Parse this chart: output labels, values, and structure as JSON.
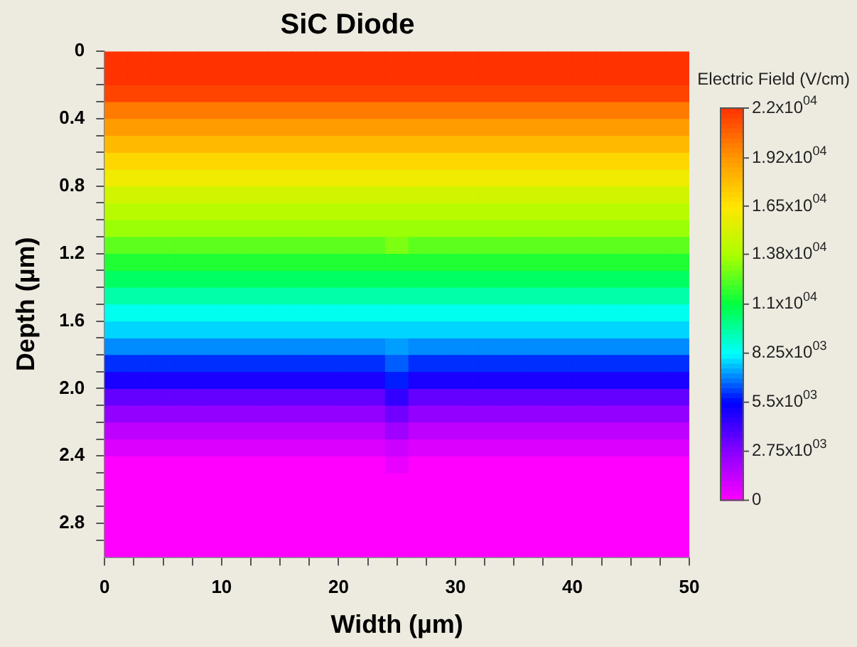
{
  "chart_data": {
    "type": "heatmap",
    "title": "SiC Diode",
    "xlabel": "Width (µm)",
    "ylabel": "Depth (µm)",
    "clabel": "Electric Field (V/cm)",
    "xlim": [
      0,
      50
    ],
    "xticks": [
      0,
      {
        "value": 2.5,
        "label": null
      },
      {
        "value": 5,
        "label": null
      },
      {
        "value": 7.5,
        "label": null
      },
      10,
      {
        "value": 12.5,
        "label": null
      },
      {
        "value": 15,
        "label": null
      },
      {
        "value": 17.5,
        "label": null
      },
      20,
      {
        "value": 22.5,
        "label": null
      },
      {
        "value": 25,
        "label": null
      },
      {
        "value": 27.5,
        "label": null
      },
      30,
      {
        "value": 32.5,
        "label": null
      },
      {
        "value": 35,
        "label": null
      },
      {
        "value": 37.5,
        "label": null
      },
      40,
      {
        "value": 42.5,
        "label": null
      },
      {
        "value": 45,
        "label": null
      },
      {
        "value": 47.5,
        "label": null
      },
      50
    ],
    "ylim": [
      3.0,
      0
    ],
    "yticks": [
      0,
      {
        "value": 0.1,
        "label": null
      },
      {
        "value": 0.2,
        "label": null
      },
      {
        "value": 0.3,
        "label": null
      },
      0.4,
      {
        "value": 0.5,
        "label": null
      },
      {
        "value": 0.6,
        "label": null
      },
      {
        "value": 0.7,
        "label": null
      },
      0.8,
      {
        "value": 0.9,
        "label": null
      },
      {
        "value": 1.0,
        "label": null
      },
      {
        "value": 1.1,
        "label": null
      },
      1.2,
      {
        "value": 1.3,
        "label": null
      },
      {
        "value": 1.4,
        "label": null
      },
      {
        "value": 1.5,
        "label": null
      },
      1.6,
      {
        "value": 1.7,
        "label": null
      },
      {
        "value": 1.8,
        "label": null
      },
      {
        "value": 1.9,
        "label": null
      },
      {
        "value": 2,
        "label": "2.0"
      },
      {
        "value": 2.1,
        "label": null
      },
      {
        "value": 2.2,
        "label": null
      },
      {
        "value": 2.3,
        "label": null
      },
      2.4,
      {
        "value": 2.5,
        "label": null
      },
      {
        "value": 2.6,
        "label": null
      },
      {
        "value": 2.7,
        "label": null
      },
      2.8,
      {
        "value": 2.9,
        "label": null
      }
    ],
    "clim": [
      0,
      22000
    ],
    "cticks": [
      {
        "value": 22000,
        "label": "2.2x10$^{04}$"
      },
      {
        "value": 19200,
        "label": "1.92x10$^{04}$"
      },
      {
        "value": 16500,
        "label": "1.65x10$^{04}$"
      },
      {
        "value": 13800,
        "label": "1.38x10$^{04}$"
      },
      {
        "value": 11000,
        "label": "1.1x10$^{04}$"
      },
      {
        "value": 8250,
        "label": "8.25x10$^{03}$"
      },
      {
        "value": 5500,
        "label": "5.5x10$^{03}$"
      },
      {
        "value": 2750,
        "label": "2.75x10$^{03}$"
      },
      0
    ],
    "cells": [
      [
        22000,
        22000,
        22000,
        22000,
        22000,
        22000,
        22000,
        22000,
        22000,
        22000,
        22000,
        22000,
        22000,
        22000,
        22000,
        22000,
        22000,
        22000,
        22000,
        22000,
        22000,
        22000,
        22000,
        22000,
        22000
      ],
      [
        22000,
        22000,
        22000,
        22000,
        22000,
        22000,
        22000,
        22000,
        22000,
        22000,
        22000,
        22000,
        22000,
        22000,
        22000,
        22000,
        22000,
        22000,
        22000,
        22000,
        22000,
        22000,
        22000,
        22000,
        22000
      ],
      [
        21500,
        21500,
        21500,
        21500,
        21500,
        21500,
        21500,
        21500,
        21500,
        21500,
        21500,
        21500,
        21500,
        21500,
        21500,
        21500,
        21500,
        21500,
        21500,
        21500,
        21500,
        21500,
        21500,
        21500,
        21500
      ],
      [
        20000,
        20000,
        20000,
        20000,
        20000,
        20000,
        20000,
        20000,
        20000,
        20000,
        20000,
        20000,
        20000,
        20000,
        20000,
        20000,
        20000,
        20000,
        20000,
        20000,
        20000,
        20000,
        20000,
        20000,
        20000
      ],
      [
        19000,
        19000,
        19000,
        19000,
        19000,
        19000,
        19000,
        19000,
        19000,
        19000,
        19000,
        19000,
        19000,
        19000,
        19000,
        19000,
        19000,
        19000,
        19000,
        19000,
        19000,
        19000,
        19000,
        19000,
        19000
      ],
      [
        18000,
        18000,
        18000,
        18000,
        18000,
        18000,
        18000,
        18000,
        18000,
        18000,
        18000,
        18000,
        18000,
        18000,
        18000,
        18000,
        18000,
        18000,
        18000,
        18000,
        18000,
        18000,
        18000,
        18000,
        18000
      ],
      [
        17000,
        17000,
        17000,
        17000,
        17000,
        17000,
        17000,
        17000,
        17000,
        17000,
        17000,
        17000,
        17000,
        17000,
        17000,
        17000,
        17000,
        17000,
        17000,
        17000,
        17000,
        17000,
        17000,
        17000,
        17000
      ],
      [
        16000,
        16000,
        16000,
        16000,
        16000,
        16000,
        16000,
        16000,
        16000,
        16000,
        16000,
        16000,
        16000,
        16000,
        16000,
        16000,
        16000,
        16000,
        16000,
        16000,
        16000,
        16000,
        16000,
        16000,
        16000
      ],
      [
        15000,
        15000,
        15000,
        15000,
        15000,
        15000,
        15000,
        15000,
        15000,
        15000,
        15000,
        15000,
        15000,
        15000,
        15000,
        15000,
        15000,
        15000,
        15000,
        15000,
        15000,
        15000,
        15000,
        15000,
        15000
      ],
      [
        14200,
        14200,
        14200,
        14200,
        14200,
        14200,
        14200,
        14200,
        14200,
        14200,
        14200,
        14200,
        14200,
        14200,
        14200,
        14200,
        14200,
        14200,
        14200,
        14200,
        14200,
        14200,
        14200,
        14200,
        14200
      ],
      [
        13500,
        13500,
        13500,
        13500,
        13500,
        13500,
        13500,
        13500,
        13500,
        13500,
        13500,
        13500,
        13500,
        13500,
        13500,
        13500,
        13500,
        13500,
        13500,
        13500,
        13500,
        13500,
        13500,
        13500,
        13500
      ],
      [
        12500,
        12500,
        12500,
        12500,
        12500,
        12500,
        12500,
        12500,
        12500,
        12500,
        12500,
        12500,
        13000,
        12500,
        12500,
        12500,
        12500,
        12500,
        12500,
        12500,
        12500,
        12500,
        12500,
        12500,
        12500
      ],
      [
        11500,
        11500,
        11500,
        11500,
        11500,
        11500,
        11500,
        11500,
        11500,
        11500,
        11500,
        11500,
        11500,
        11500,
        11500,
        11500,
        11500,
        11500,
        11500,
        11500,
        11500,
        11500,
        11500,
        11500,
        11500
      ],
      [
        10500,
        10500,
        10500,
        10500,
        10500,
        10500,
        10500,
        10500,
        10500,
        10500,
        10500,
        10500,
        10500,
        10500,
        10500,
        10500,
        10500,
        10500,
        10500,
        10500,
        10500,
        10500,
        10500,
        10500,
        10500
      ],
      [
        9500,
        9500,
        9500,
        9500,
        9500,
        9500,
        9500,
        9500,
        9500,
        9500,
        9500,
        9500,
        9500,
        9500,
        9500,
        9500,
        9500,
        9500,
        9500,
        9500,
        9500,
        9500,
        9500,
        9500,
        9500
      ],
      [
        8500,
        8500,
        8500,
        8500,
        8500,
        8500,
        8500,
        8500,
        8500,
        8500,
        8500,
        8500,
        8500,
        8500,
        8500,
        8500,
        8500,
        8500,
        8500,
        8500,
        8500,
        8500,
        8500,
        8500,
        8500
      ],
      [
        7800,
        7800,
        7800,
        7800,
        7800,
        7800,
        7800,
        7800,
        7800,
        7800,
        7800,
        7800,
        7800,
        7800,
        7800,
        7800,
        7800,
        7800,
        7800,
        7800,
        7800,
        7800,
        7800,
        7800,
        7800
      ],
      [
        7000,
        7000,
        7000,
        7000,
        7000,
        7000,
        7000,
        7000,
        7000,
        7000,
        7000,
        7000,
        7200,
        7000,
        7000,
        7000,
        7000,
        7000,
        7000,
        7000,
        7000,
        7000,
        7000,
        7000,
        7000
      ],
      [
        6000,
        6000,
        6000,
        6000,
        6000,
        6000,
        6000,
        6000,
        6000,
        6000,
        6000,
        6000,
        6500,
        6000,
        6000,
        6000,
        6000,
        6000,
        6000,
        6000,
        6000,
        6000,
        6000,
        6000,
        6000
      ],
      [
        5000,
        5000,
        5000,
        5000,
        5000,
        5000,
        5000,
        5000,
        5000,
        5000,
        5000,
        5000,
        5800,
        5000,
        5000,
        5000,
        5000,
        5000,
        5000,
        5000,
        5000,
        5000,
        5000,
        5000,
        5000
      ],
      [
        3500,
        3500,
        3500,
        3500,
        3500,
        3500,
        3500,
        3500,
        3500,
        3500,
        3500,
        3500,
        4500,
        3500,
        3500,
        3500,
        3500,
        3500,
        3500,
        3500,
        3500,
        3500,
        3500,
        3500,
        3500
      ],
      [
        2500,
        2500,
        2500,
        2500,
        2500,
        2500,
        2500,
        2500,
        2500,
        2500,
        2500,
        2500,
        3200,
        2500,
        2500,
        2500,
        2500,
        2500,
        2500,
        2500,
        2500,
        2500,
        2500,
        2500,
        2500
      ],
      [
        1500,
        1500,
        1500,
        1500,
        1500,
        1500,
        1500,
        1500,
        1500,
        1500,
        1500,
        1500,
        2200,
        1500,
        1500,
        1500,
        1500,
        1500,
        1500,
        1500,
        1500,
        1500,
        1500,
        1500,
        1500
      ],
      [
        800,
        800,
        800,
        800,
        800,
        800,
        800,
        800,
        800,
        800,
        800,
        800,
        1200,
        800,
        800,
        800,
        800,
        800,
        800,
        800,
        800,
        800,
        800,
        800,
        800
      ],
      [
        0,
        0,
        0,
        0,
        0,
        0,
        0,
        0,
        0,
        0,
        0,
        0,
        500,
        0,
        0,
        0,
        0,
        0,
        0,
        0,
        0,
        0,
        0,
        0,
        0
      ],
      [
        0,
        0,
        0,
        0,
        0,
        0,
        0,
        0,
        0,
        0,
        0,
        0,
        0,
        0,
        0,
        0,
        0,
        0,
        0,
        0,
        0,
        0,
        0,
        0,
        0
      ],
      [
        0,
        0,
        0,
        0,
        0,
        0,
        0,
        0,
        0,
        0,
        0,
        0,
        0,
        0,
        0,
        0,
        0,
        0,
        0,
        0,
        0,
        0,
        0,
        0,
        0
      ],
      [
        0,
        0,
        0,
        0,
        0,
        0,
        0,
        0,
        0,
        0,
        0,
        0,
        0,
        0,
        0,
        0,
        0,
        0,
        0,
        0,
        0,
        0,
        0,
        0,
        0
      ],
      [
        0,
        0,
        0,
        0,
        0,
        0,
        0,
        0,
        0,
        0,
        0,
        0,
        0,
        0,
        0,
        0,
        0,
        0,
        0,
        0,
        0,
        0,
        0,
        0,
        0
      ],
      [
        0,
        0,
        0,
        0,
        0,
        0,
        0,
        0,
        0,
        0,
        0,
        0,
        0,
        0,
        0,
        0,
        0,
        0,
        0,
        0,
        0,
        0,
        0,
        0,
        0
      ]
    ]
  }
}
